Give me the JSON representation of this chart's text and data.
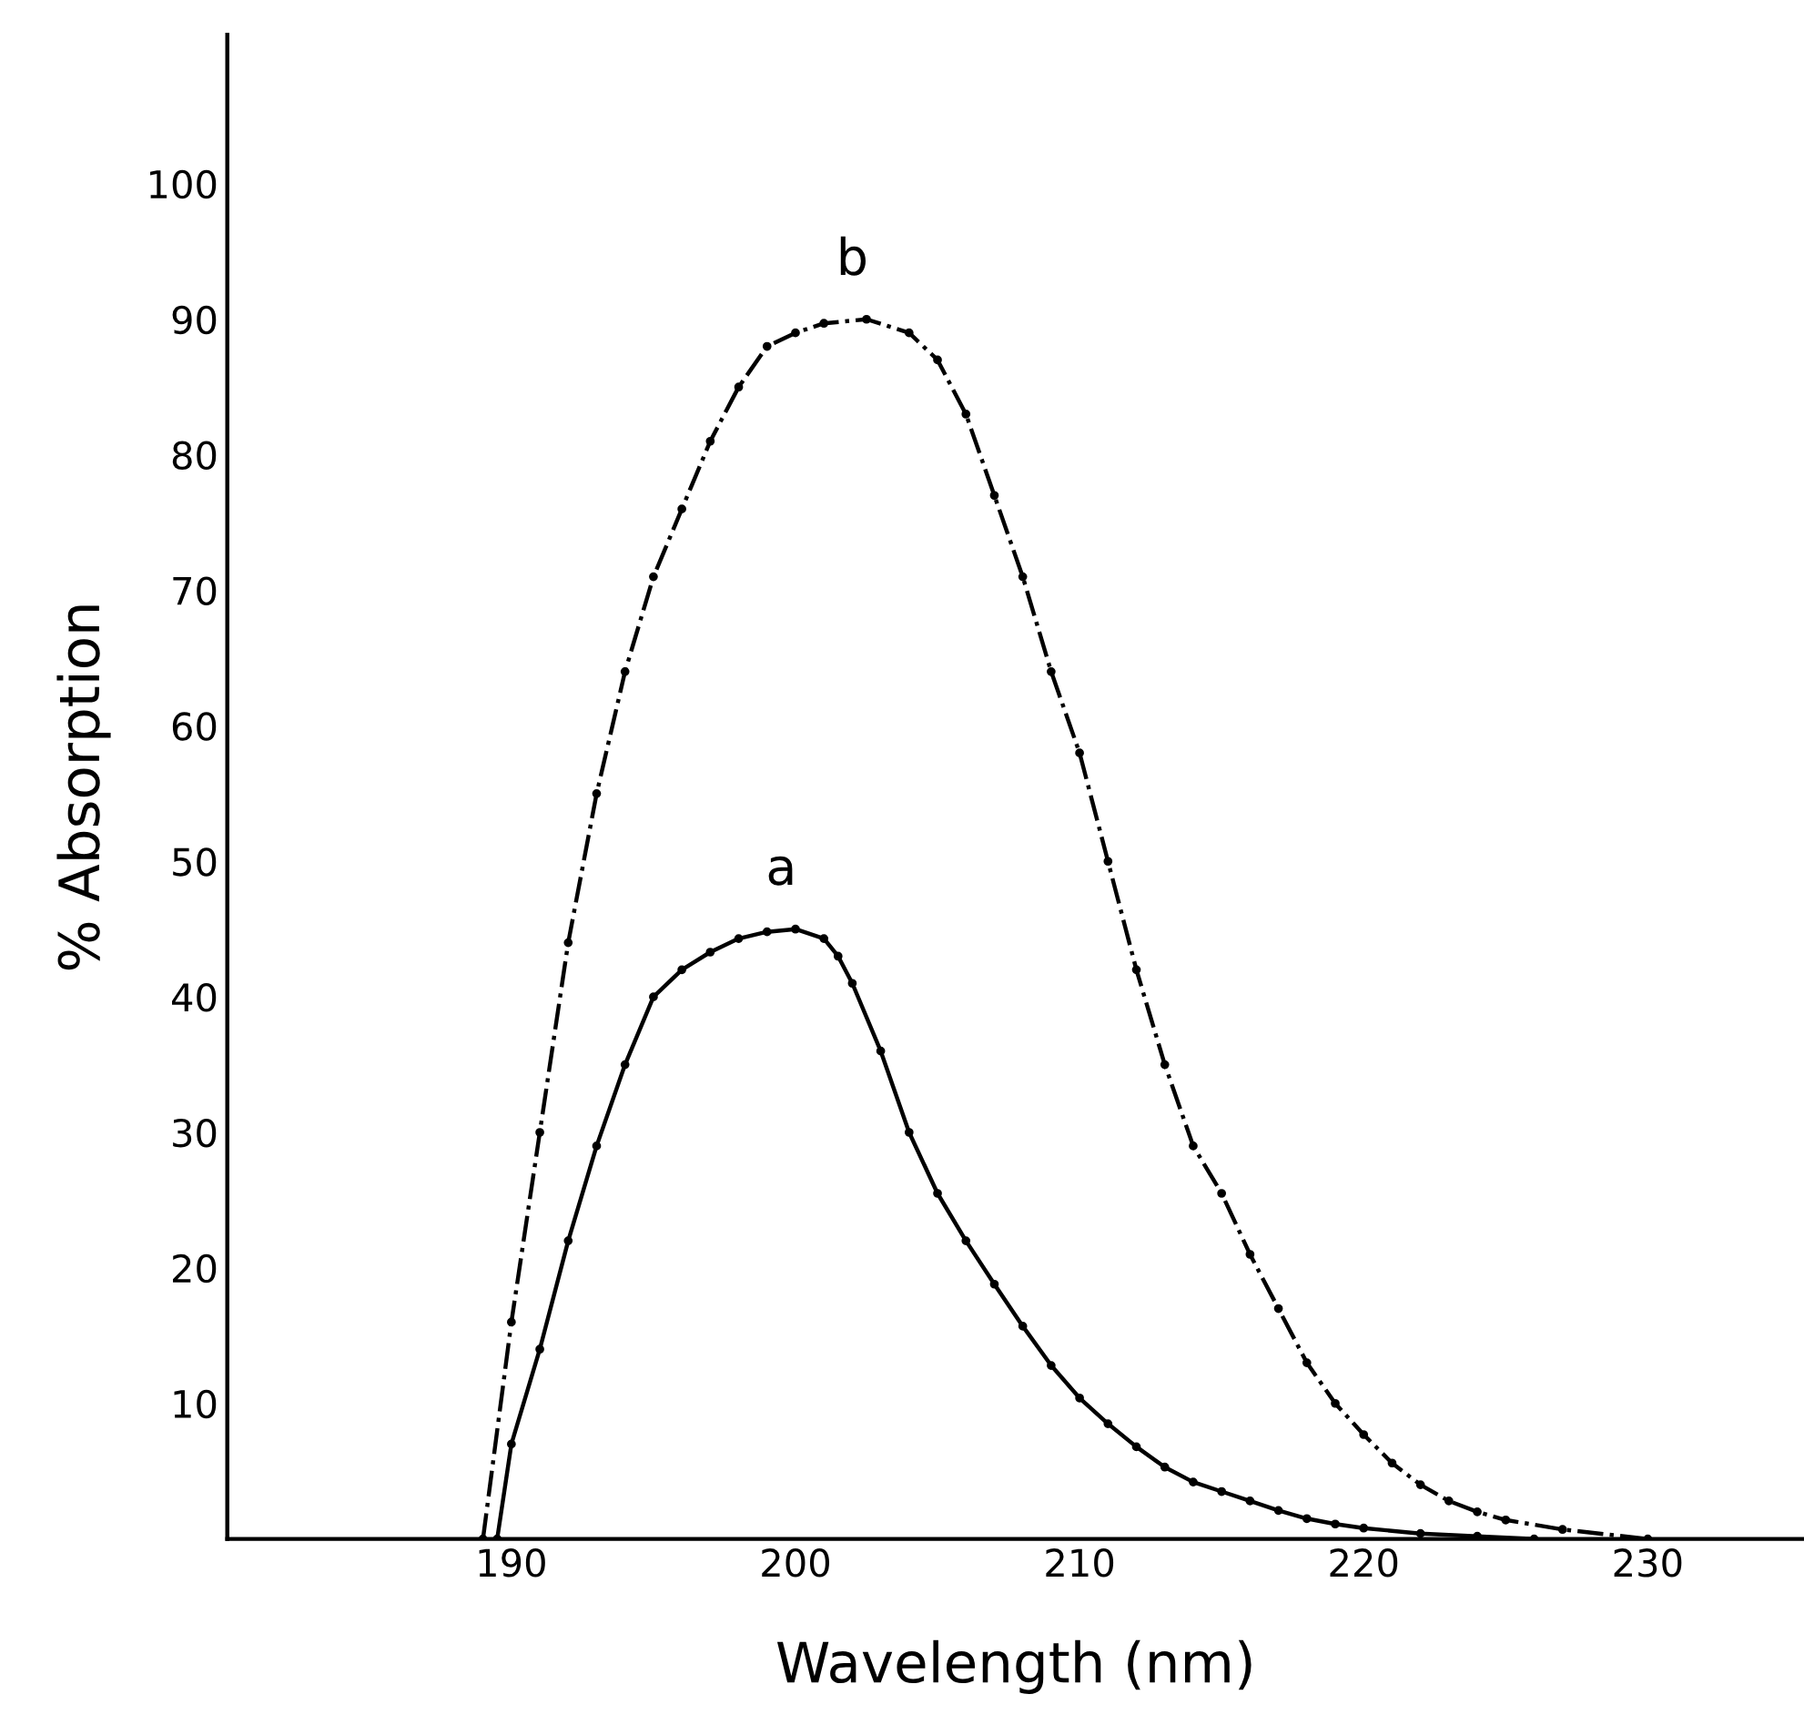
{
  "chart_data": {
    "type": "line",
    "xlabel": "Wavelength (nm)",
    "ylabel": "% Absorption",
    "xlim": [
      180,
      235.5
    ],
    "ylim": [
      0,
      111
    ],
    "xticks": [
      190,
      200,
      210,
      220,
      230
    ],
    "yticks": [
      10,
      20,
      30,
      40,
      50,
      60,
      70,
      80,
      90,
      100
    ],
    "grid": false,
    "legend": false,
    "marker": "circle",
    "series": [
      {
        "name": "a",
        "color": "#000000",
        "line_style": "solid",
        "x": [
          189.5,
          190,
          191,
          192,
          193,
          194,
          195,
          196,
          197,
          198,
          199,
          200,
          201,
          201.5,
          202,
          203,
          204,
          205,
          206,
          207,
          208,
          209,
          210,
          211,
          212,
          213,
          214,
          215,
          216,
          217,
          218,
          219,
          220,
          222,
          224,
          226
        ],
        "values": [
          0,
          7,
          14,
          22,
          29,
          35,
          40,
          42,
          43.3,
          44.3,
          44.8,
          45,
          44.3,
          43,
          41,
          36,
          30,
          25.5,
          22,
          18.8,
          15.7,
          12.8,
          10.4,
          8.5,
          6.8,
          5.3,
          4.2,
          3.5,
          2.8,
          2.1,
          1.5,
          1.1,
          0.8,
          0.4,
          0.2,
          0
        ]
      },
      {
        "name": "b",
        "color": "#000000",
        "line_style": "dashdot",
        "x": [
          189,
          190,
          191,
          192,
          193,
          194,
          195,
          196,
          197,
          198,
          199,
          200,
          201,
          202.5,
          204,
          205,
          206,
          207,
          208,
          209,
          210,
          211,
          212,
          213,
          214,
          215,
          216,
          217,
          218,
          219,
          220,
          221,
          222,
          223,
          224,
          225,
          227,
          230
        ],
        "values": [
          0,
          16,
          30,
          44,
          55,
          64,
          71,
          76,
          81,
          85,
          88,
          89,
          89.7,
          90,
          89,
          87,
          83,
          77,
          71,
          64,
          58,
          50,
          42,
          35,
          29,
          25.5,
          21,
          17,
          13,
          10,
          7.7,
          5.6,
          4,
          2.8,
          2,
          1.4,
          0.7,
          0
        ]
      }
    ]
  }
}
